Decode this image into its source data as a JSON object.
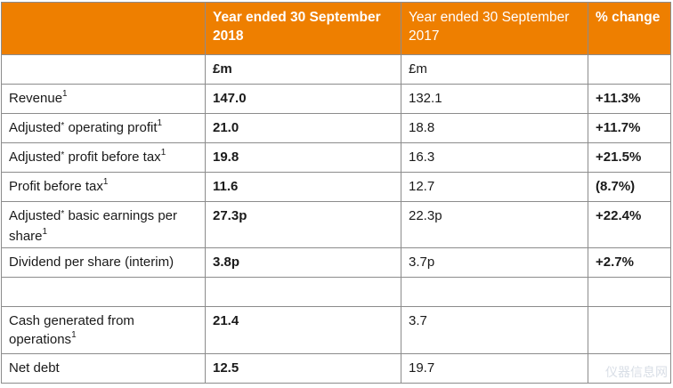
{
  "header": {
    "col1": "",
    "col2": "Year ended 30 September 2018",
    "col3": "Year ended 30 September 2017",
    "col4": "% change"
  },
  "units": {
    "col2": "£m",
    "col3": "£m",
    "col4": ""
  },
  "rows": [
    {
      "label": "Revenue",
      "star": "",
      "sup": "1",
      "label2": "",
      "v2018": "147.0",
      "v2017": "132.1",
      "change": "+11.3%"
    },
    {
      "label": "Adjusted",
      "star": "*",
      "label2": " operating profit",
      "sup": "1",
      "v2018": "21.0",
      "v2017": "18.8",
      "change": "+11.7%"
    },
    {
      "label": "Adjusted",
      "star": "*",
      "label2": " profit before tax",
      "sup": "1",
      "v2018": "19.8",
      "v2017": "16.3",
      "change": "+21.5%"
    },
    {
      "label": "Profit before tax",
      "star": "",
      "label2": "",
      "sup": "1",
      "v2018": "11.6",
      "v2017": "12.7",
      "change": "(8.7%)"
    },
    {
      "label": "Adjusted",
      "star": "*",
      "label2": " basic earnings per share",
      "sup": "1",
      "v2018": "27.3p",
      "v2017": "22.3p",
      "change": "+22.4%"
    },
    {
      "label": "Dividend per share (interim)",
      "star": "",
      "label2": "",
      "sup": "",
      "v2018": "3.8p",
      "v2017": "3.7p",
      "change": "+2.7%"
    },
    {
      "label": "",
      "star": "",
      "label2": "",
      "sup": "",
      "v2018": "",
      "v2017": "",
      "change": ""
    },
    {
      "label": "Cash generated from operations",
      "star": "",
      "label2": "",
      "sup": "1",
      "v2018": "21.4",
      "v2017": "3.7",
      "change": ""
    },
    {
      "label": "Net debt",
      "star": "",
      "label2": "",
      "sup": "",
      "v2018": "12.5",
      "v2017": "19.7",
      "change": ""
    }
  ],
  "watermark": "仪器信息网",
  "colors": {
    "header_bg": "#ee7f00",
    "header_text": "#ffffff",
    "border": "#8c8c8c"
  }
}
